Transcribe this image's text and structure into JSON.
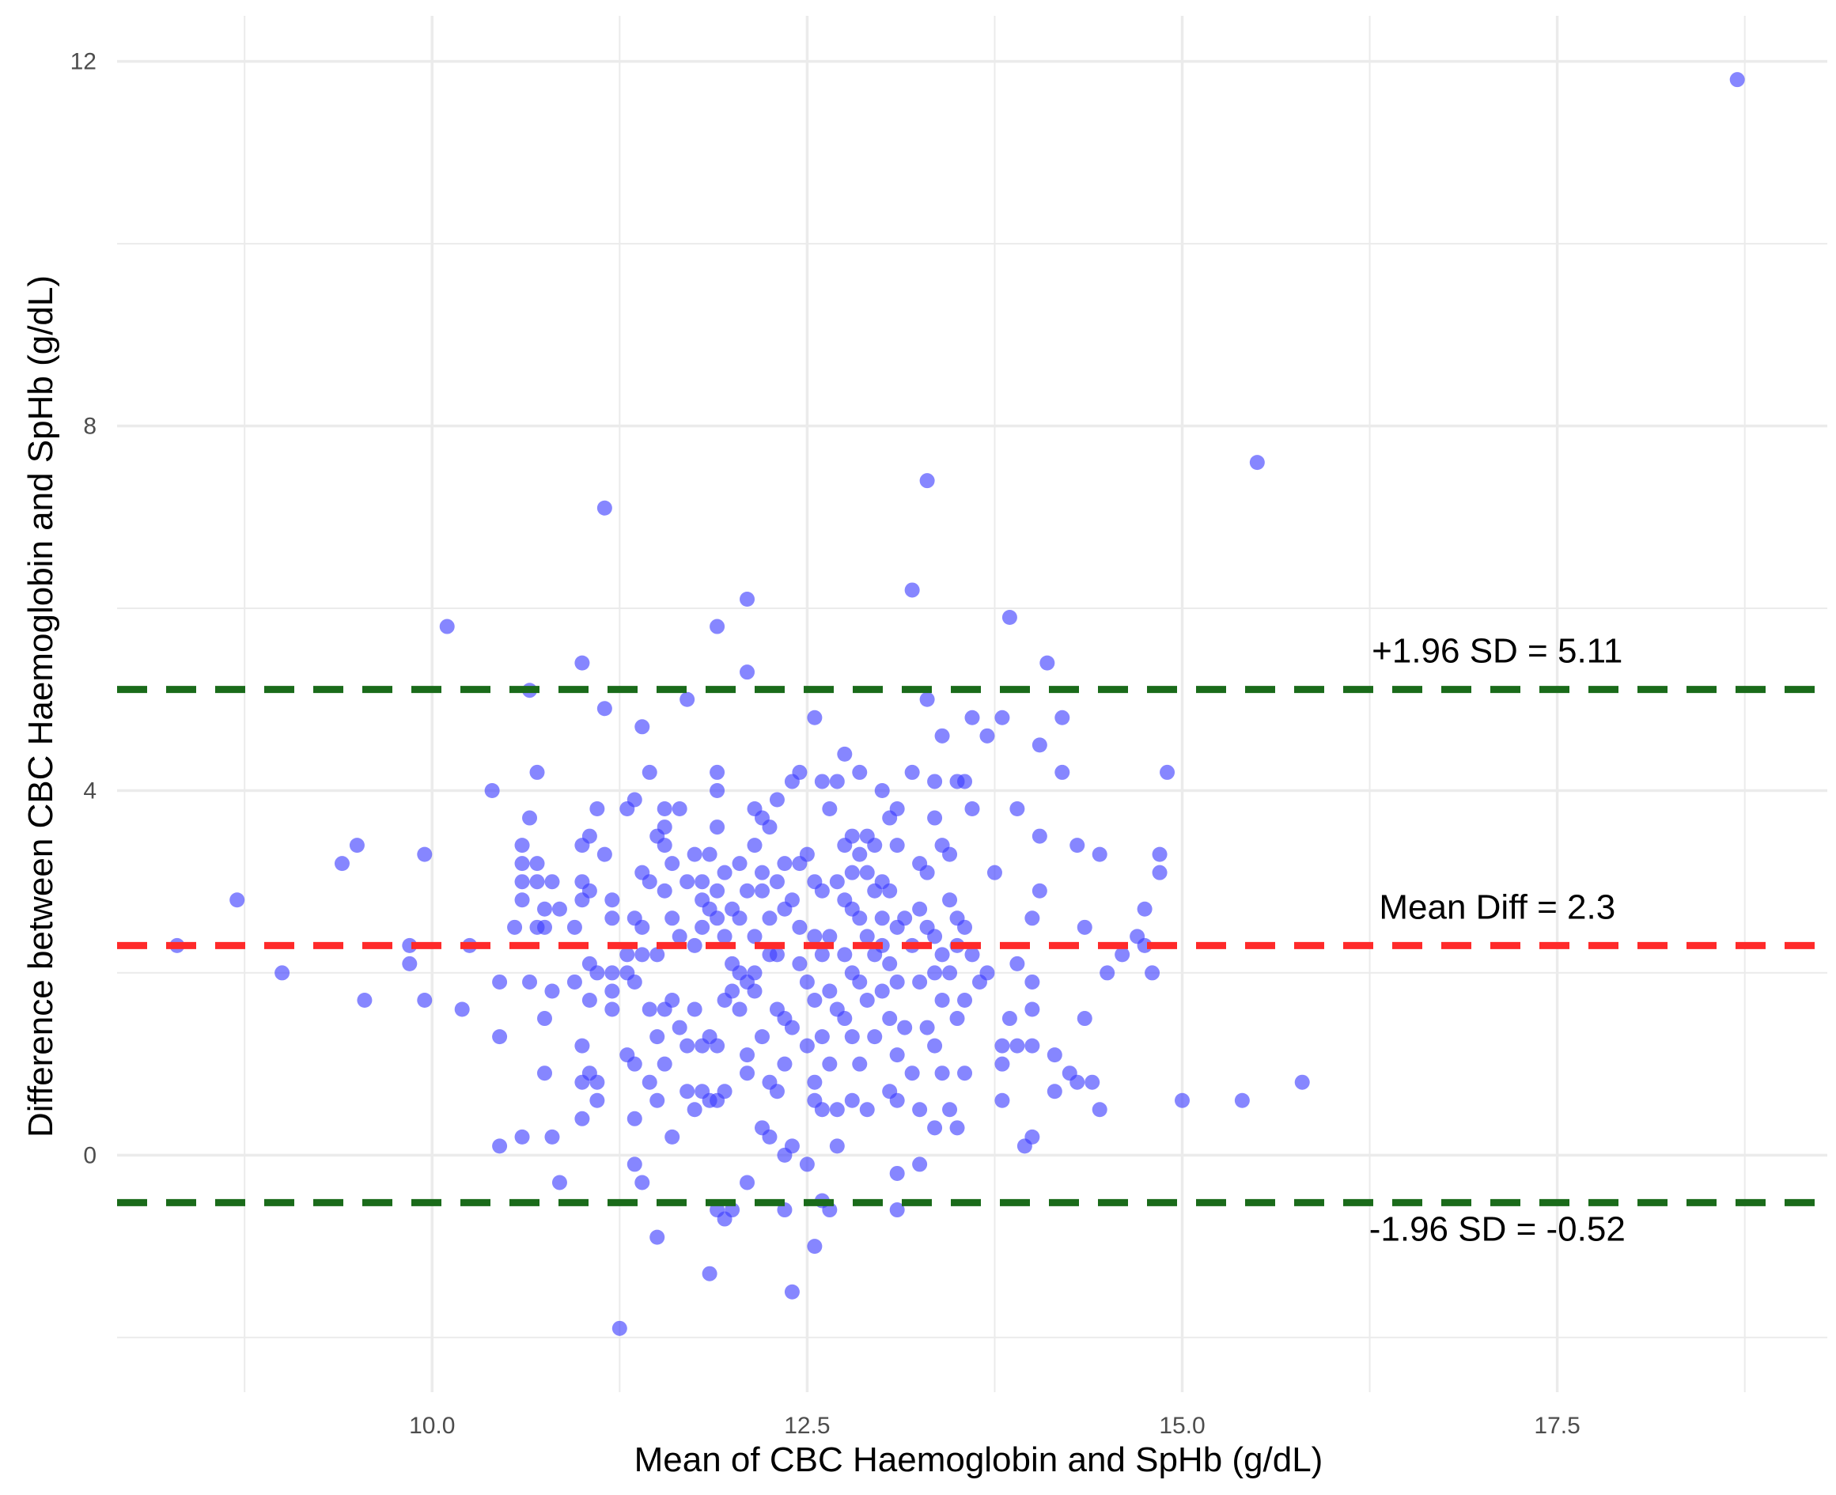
{
  "chart_data": {
    "type": "scatter",
    "title": "",
    "xlabel": "Mean of CBC Haemoglobin and SpHb (g/dL)",
    "ylabel": "Difference between CBC Haemoglobin and SpHb (g/dL)",
    "xlim": [
      7.9,
      19.3
    ],
    "ylim": [
      -2.6,
      12.5
    ],
    "x_ticks": [
      10.0,
      12.5,
      15.0,
      17.5
    ],
    "x_tick_labels": [
      "10.0",
      "12.5",
      "15.0",
      "17.5"
    ],
    "y_ticks": [
      0,
      4,
      8,
      12
    ],
    "y_tick_labels": [
      "0",
      "4",
      "8",
      "12"
    ],
    "grid": true,
    "colors": {
      "points": "#3b3bff",
      "mean_line": "#ff2a2a",
      "limit_line": "#1a6b1a",
      "grid": "#ebebeb"
    },
    "reference_lines": [
      {
        "id": "upper",
        "y": 5.11,
        "label": "+1.96 SD = 5.11",
        "color": "#1a6b1a"
      },
      {
        "id": "mean",
        "y": 2.3,
        "label": "Mean Diff = 2.3",
        "color": "#ff2a2a"
      },
      {
        "id": "lower",
        "y": -0.52,
        "label": "-1.96 SD = -0.52",
        "color": "#1a6b1a"
      }
    ],
    "points": [
      [
        8.3,
        2.3
      ],
      [
        8.7,
        2.8
      ],
      [
        9.0,
        2.0
      ],
      [
        9.4,
        3.2
      ],
      [
        9.5,
        3.4
      ],
      [
        9.55,
        1.7
      ],
      [
        9.85,
        2.3
      ],
      [
        9.85,
        2.1
      ],
      [
        9.95,
        3.3
      ],
      [
        9.95,
        1.7
      ],
      [
        10.1,
        5.8
      ],
      [
        10.2,
        1.6
      ],
      [
        10.25,
        2.3
      ],
      [
        10.4,
        4.0
      ],
      [
        10.45,
        1.9
      ],
      [
        10.45,
        1.3
      ],
      [
        10.45,
        0.1
      ],
      [
        10.55,
        2.5
      ],
      [
        10.6,
        3.4
      ],
      [
        10.6,
        3.2
      ],
      [
        10.6,
        3.0
      ],
      [
        10.6,
        2.8
      ],
      [
        10.6,
        0.2
      ],
      [
        10.65,
        5.1
      ],
      [
        10.65,
        3.7
      ],
      [
        10.65,
        1.9
      ],
      [
        10.7,
        4.2
      ],
      [
        10.7,
        3.2
      ],
      [
        10.7,
        3.0
      ],
      [
        10.7,
        2.5
      ],
      [
        10.75,
        2.7
      ],
      [
        10.75,
        2.5
      ],
      [
        10.75,
        1.5
      ],
      [
        10.75,
        0.9
      ],
      [
        10.8,
        3.0
      ],
      [
        10.8,
        1.8
      ],
      [
        10.8,
        0.2
      ],
      [
        10.85,
        2.7
      ],
      [
        10.85,
        -0.3
      ],
      [
        10.95,
        2.5
      ],
      [
        10.95,
        1.9
      ],
      [
        11.0,
        5.4
      ],
      [
        11.0,
        3.4
      ],
      [
        11.0,
        3.0
      ],
      [
        11.0,
        2.8
      ],
      [
        11.0,
        1.2
      ],
      [
        11.0,
        0.8
      ],
      [
        11.0,
        0.4
      ],
      [
        11.05,
        3.5
      ],
      [
        11.05,
        2.9
      ],
      [
        11.05,
        2.1
      ],
      [
        11.05,
        1.7
      ],
      [
        11.05,
        0.9
      ],
      [
        11.1,
        3.8
      ],
      [
        11.1,
        2.0
      ],
      [
        11.1,
        0.8
      ],
      [
        11.1,
        0.6
      ],
      [
        11.15,
        7.1
      ],
      [
        11.15,
        4.9
      ],
      [
        11.15,
        3.3
      ],
      [
        11.2,
        2.8
      ],
      [
        11.2,
        2.6
      ],
      [
        11.2,
        2.0
      ],
      [
        11.2,
        1.8
      ],
      [
        11.2,
        1.6
      ],
      [
        11.25,
        -1.9
      ],
      [
        11.3,
        3.8
      ],
      [
        11.3,
        2.2
      ],
      [
        11.3,
        2.0
      ],
      [
        11.3,
        1.1
      ],
      [
        11.35,
        3.9
      ],
      [
        11.35,
        2.6
      ],
      [
        11.35,
        1.9
      ],
      [
        11.35,
        1.0
      ],
      [
        11.35,
        0.4
      ],
      [
        11.35,
        -0.1
      ],
      [
        11.4,
        4.7
      ],
      [
        11.4,
        3.1
      ],
      [
        11.4,
        2.5
      ],
      [
        11.4,
        2.2
      ],
      [
        11.4,
        -0.3
      ],
      [
        11.45,
        4.2
      ],
      [
        11.45,
        3.0
      ],
      [
        11.45,
        1.6
      ],
      [
        11.45,
        0.8
      ],
      [
        11.5,
        3.5
      ],
      [
        11.5,
        2.2
      ],
      [
        11.5,
        1.3
      ],
      [
        11.5,
        0.6
      ],
      [
        11.5,
        -0.9
      ],
      [
        11.55,
        3.8
      ],
      [
        11.55,
        3.6
      ],
      [
        11.55,
        3.4
      ],
      [
        11.55,
        2.9
      ],
      [
        11.55,
        1.6
      ],
      [
        11.55,
        1.0
      ],
      [
        11.6,
        3.2
      ],
      [
        11.6,
        2.6
      ],
      [
        11.6,
        1.7
      ],
      [
        11.6,
        0.2
      ],
      [
        11.65,
        3.8
      ],
      [
        11.65,
        2.4
      ],
      [
        11.65,
        1.4
      ],
      [
        11.7,
        5.0
      ],
      [
        11.7,
        3.0
      ],
      [
        11.7,
        1.2
      ],
      [
        11.7,
        0.7
      ],
      [
        11.75,
        3.3
      ],
      [
        11.75,
        2.3
      ],
      [
        11.75,
        1.6
      ],
      [
        11.75,
        0.5
      ],
      [
        11.8,
        3.0
      ],
      [
        11.8,
        2.8
      ],
      [
        11.8,
        2.5
      ],
      [
        11.8,
        1.2
      ],
      [
        11.8,
        0.7
      ],
      [
        11.85,
        3.3
      ],
      [
        11.85,
        2.7
      ],
      [
        11.85,
        1.3
      ],
      [
        11.85,
        0.6
      ],
      [
        11.85,
        -1.3
      ],
      [
        11.9,
        5.8
      ],
      [
        11.9,
        4.2
      ],
      [
        11.9,
        4.0
      ],
      [
        11.9,
        3.6
      ],
      [
        11.9,
        2.9
      ],
      [
        11.9,
        2.6
      ],
      [
        11.9,
        1.2
      ],
      [
        11.9,
        0.6
      ],
      [
        11.9,
        -0.6
      ],
      [
        11.95,
        3.1
      ],
      [
        11.95,
        2.4
      ],
      [
        11.95,
        1.7
      ],
      [
        11.95,
        0.7
      ],
      [
        11.95,
        -0.7
      ],
      [
        12.0,
        2.7
      ],
      [
        12.0,
        2.1
      ],
      [
        12.0,
        1.8
      ],
      [
        12.0,
        -0.6
      ],
      [
        12.05,
        3.2
      ],
      [
        12.05,
        2.6
      ],
      [
        12.05,
        2.0
      ],
      [
        12.05,
        1.6
      ],
      [
        12.1,
        6.1
      ],
      [
        12.1,
        5.3
      ],
      [
        12.1,
        2.9
      ],
      [
        12.1,
        1.9
      ],
      [
        12.1,
        1.1
      ],
      [
        12.1,
        0.9
      ],
      [
        12.1,
        -0.3
      ],
      [
        12.15,
        3.8
      ],
      [
        12.15,
        3.4
      ],
      [
        12.15,
        2.4
      ],
      [
        12.15,
        2.0
      ],
      [
        12.15,
        1.8
      ],
      [
        12.2,
        3.7
      ],
      [
        12.2,
        3.1
      ],
      [
        12.2,
        2.9
      ],
      [
        12.2,
        1.3
      ],
      [
        12.2,
        0.3
      ],
      [
        12.25,
        3.6
      ],
      [
        12.25,
        2.6
      ],
      [
        12.25,
        2.2
      ],
      [
        12.25,
        0.8
      ],
      [
        12.25,
        0.2
      ],
      [
        12.3,
        3.9
      ],
      [
        12.3,
        3.0
      ],
      [
        12.3,
        2.2
      ],
      [
        12.3,
        1.6
      ],
      [
        12.3,
        0.7
      ],
      [
        12.35,
        3.2
      ],
      [
        12.35,
        2.7
      ],
      [
        12.35,
        1.5
      ],
      [
        12.35,
        1.0
      ],
      [
        12.35,
        0.0
      ],
      [
        12.35,
        -0.6
      ],
      [
        12.4,
        4.1
      ],
      [
        12.4,
        2.8
      ],
      [
        12.4,
        1.4
      ],
      [
        12.4,
        0.1
      ],
      [
        12.4,
        -1.5
      ],
      [
        12.45,
        4.2
      ],
      [
        12.45,
        3.2
      ],
      [
        12.45,
        2.5
      ],
      [
        12.45,
        2.1
      ],
      [
        12.5,
        3.3
      ],
      [
        12.5,
        1.9
      ],
      [
        12.5,
        1.2
      ],
      [
        12.5,
        -0.1
      ],
      [
        12.55,
        4.8
      ],
      [
        12.55,
        3.0
      ],
      [
        12.55,
        2.4
      ],
      [
        12.55,
        1.7
      ],
      [
        12.55,
        0.8
      ],
      [
        12.55,
        0.6
      ],
      [
        12.55,
        -1.0
      ],
      [
        12.6,
        4.1
      ],
      [
        12.6,
        2.9
      ],
      [
        12.6,
        2.2
      ],
      [
        12.6,
        1.3
      ],
      [
        12.6,
        0.5
      ],
      [
        12.6,
        -0.5
      ],
      [
        12.65,
        3.8
      ],
      [
        12.65,
        2.4
      ],
      [
        12.65,
        1.8
      ],
      [
        12.65,
        1.0
      ],
      [
        12.65,
        -0.6
      ],
      [
        12.7,
        4.1
      ],
      [
        12.7,
        3.0
      ],
      [
        12.7,
        1.6
      ],
      [
        12.7,
        0.5
      ],
      [
        12.7,
        0.1
      ],
      [
        12.75,
        4.4
      ],
      [
        12.75,
        3.4
      ],
      [
        12.75,
        2.8
      ],
      [
        12.75,
        2.2
      ],
      [
        12.75,
        1.5
      ],
      [
        12.8,
        3.5
      ],
      [
        12.8,
        3.1
      ],
      [
        12.8,
        2.7
      ],
      [
        12.8,
        2.0
      ],
      [
        12.8,
        1.3
      ],
      [
        12.8,
        0.6
      ],
      [
        12.85,
        4.2
      ],
      [
        12.85,
        3.3
      ],
      [
        12.85,
        2.6
      ],
      [
        12.85,
        1.9
      ],
      [
        12.85,
        1.0
      ],
      [
        12.9,
        3.5
      ],
      [
        12.9,
        3.1
      ],
      [
        12.9,
        2.4
      ],
      [
        12.9,
        1.7
      ],
      [
        12.9,
        0.5
      ],
      [
        12.95,
        3.4
      ],
      [
        12.95,
        2.9
      ],
      [
        12.95,
        2.2
      ],
      [
        12.95,
        1.3
      ],
      [
        13.0,
        4.0
      ],
      [
        13.0,
        3.0
      ],
      [
        13.0,
        2.6
      ],
      [
        13.0,
        2.3
      ],
      [
        13.0,
        1.8
      ],
      [
        13.05,
        3.7
      ],
      [
        13.05,
        2.9
      ],
      [
        13.05,
        2.1
      ],
      [
        13.05,
        1.5
      ],
      [
        13.05,
        0.7
      ],
      [
        13.1,
        3.8
      ],
      [
        13.1,
        3.4
      ],
      [
        13.1,
        2.5
      ],
      [
        13.1,
        1.9
      ],
      [
        13.1,
        1.1
      ],
      [
        13.1,
        0.6
      ],
      [
        13.1,
        -0.2
      ],
      [
        13.1,
        -0.6
      ],
      [
        13.15,
        2.6
      ],
      [
        13.15,
        1.4
      ],
      [
        13.2,
        6.2
      ],
      [
        13.2,
        4.2
      ],
      [
        13.2,
        2.3
      ],
      [
        13.2,
        0.9
      ],
      [
        13.25,
        3.2
      ],
      [
        13.25,
        2.7
      ],
      [
        13.25,
        1.9
      ],
      [
        13.25,
        0.5
      ],
      [
        13.25,
        -0.1
      ],
      [
        13.3,
        7.4
      ],
      [
        13.3,
        5.0
      ],
      [
        13.3,
        3.1
      ],
      [
        13.3,
        2.5
      ],
      [
        13.3,
        1.4
      ],
      [
        13.35,
        4.1
      ],
      [
        13.35,
        3.7
      ],
      [
        13.35,
        2.4
      ],
      [
        13.35,
        2.0
      ],
      [
        13.35,
        1.2
      ],
      [
        13.35,
        0.3
      ],
      [
        13.4,
        4.6
      ],
      [
        13.4,
        3.4
      ],
      [
        13.4,
        2.2
      ],
      [
        13.4,
        1.7
      ],
      [
        13.4,
        0.9
      ],
      [
        13.45,
        3.3
      ],
      [
        13.45,
        2.8
      ],
      [
        13.45,
        2.0
      ],
      [
        13.45,
        0.5
      ],
      [
        13.5,
        4.1
      ],
      [
        13.5,
        2.6
      ],
      [
        13.5,
        2.3
      ],
      [
        13.5,
        1.5
      ],
      [
        13.5,
        0.3
      ],
      [
        13.55,
        4.1
      ],
      [
        13.55,
        2.5
      ],
      [
        13.55,
        1.7
      ],
      [
        13.55,
        0.9
      ],
      [
        13.6,
        4.8
      ],
      [
        13.6,
        3.8
      ],
      [
        13.6,
        2.2
      ],
      [
        13.65,
        1.9
      ],
      [
        13.7,
        4.6
      ],
      [
        13.7,
        2.0
      ],
      [
        13.75,
        3.1
      ],
      [
        13.8,
        4.8
      ],
      [
        13.8,
        1.2
      ],
      [
        13.8,
        1.0
      ],
      [
        13.8,
        0.6
      ],
      [
        13.85,
        5.9
      ],
      [
        13.85,
        1.5
      ],
      [
        13.9,
        3.8
      ],
      [
        13.9,
        2.1
      ],
      [
        13.9,
        1.2
      ],
      [
        13.95,
        0.1
      ],
      [
        14.0,
        2.6
      ],
      [
        14.0,
        1.9
      ],
      [
        14.0,
        1.6
      ],
      [
        14.0,
        1.2
      ],
      [
        14.0,
        0.2
      ],
      [
        14.05,
        4.5
      ],
      [
        14.05,
        3.5
      ],
      [
        14.05,
        2.9
      ],
      [
        14.1,
        5.4
      ],
      [
        14.15,
        1.1
      ],
      [
        14.15,
        0.7
      ],
      [
        14.2,
        4.8
      ],
      [
        14.2,
        4.2
      ],
      [
        14.25,
        0.9
      ],
      [
        14.3,
        3.4
      ],
      [
        14.3,
        0.8
      ],
      [
        14.35,
        2.5
      ],
      [
        14.35,
        1.5
      ],
      [
        14.4,
        0.8
      ],
      [
        14.45,
        3.3
      ],
      [
        14.45,
        0.5
      ],
      [
        14.5,
        2.0
      ],
      [
        14.6,
        2.2
      ],
      [
        14.7,
        2.4
      ],
      [
        14.75,
        2.7
      ],
      [
        14.75,
        2.3
      ],
      [
        14.8,
        2.0
      ],
      [
        14.85,
        3.3
      ],
      [
        14.85,
        3.1
      ],
      [
        14.9,
        4.2
      ],
      [
        15.0,
        0.6
      ],
      [
        15.4,
        0.6
      ],
      [
        15.5,
        7.6
      ],
      [
        15.8,
        0.8
      ],
      [
        18.7,
        11.8
      ]
    ]
  }
}
